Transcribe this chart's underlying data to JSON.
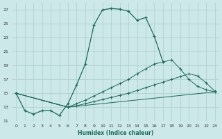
{
  "xlabel": "Humidex (Indice chaleur)",
  "background_color": "#cce8e8",
  "grid_color": "#aacece",
  "line_color": "#1a6b5a",
  "xlim": [
    -0.5,
    23.5
  ],
  "ylim": [
    11,
    28
  ],
  "yticks": [
    11,
    13,
    15,
    17,
    19,
    21,
    23,
    25,
    27
  ],
  "xticks": [
    0,
    1,
    2,
    3,
    4,
    5,
    6,
    7,
    8,
    9,
    10,
    11,
    12,
    13,
    14,
    15,
    16,
    17,
    18,
    19,
    20,
    21,
    22,
    23
  ],
  "line1_x": [
    0,
    1,
    2,
    3,
    4,
    5,
    6,
    7,
    8,
    9,
    10,
    11,
    12,
    13,
    14,
    15,
    16,
    17
  ],
  "line1_y": [
    15.0,
    12.5,
    12.0,
    12.5,
    12.5,
    11.8,
    13.5,
    16.2,
    19.2,
    24.8,
    27.0,
    27.2,
    27.1,
    26.8,
    25.5,
    25.9,
    23.2,
    19.5
  ],
  "line2_x": [
    0,
    6,
    23
  ],
  "line2_y": [
    15.0,
    13.0,
    15.2
  ],
  "line3_x": [
    0,
    6,
    7,
    8,
    9,
    10,
    11,
    12,
    13,
    14,
    15,
    16,
    17,
    18,
    19,
    20,
    21,
    22,
    23
  ],
  "line3_y": [
    15.0,
    13.0,
    13.2,
    13.5,
    13.8,
    14.1,
    14.4,
    14.7,
    15.0,
    15.4,
    15.8,
    16.2,
    16.6,
    17.0,
    17.4,
    17.8,
    17.5,
    16.5,
    15.3
  ],
  "line4_x": [
    0,
    6,
    7,
    8,
    9,
    10,
    11,
    12,
    13,
    14,
    15,
    16,
    17,
    18,
    19,
    20,
    21,
    22,
    23
  ],
  "line4_y": [
    15.0,
    13.0,
    13.5,
    14.0,
    14.6,
    15.2,
    15.8,
    16.4,
    17.0,
    17.8,
    18.5,
    19.2,
    19.5,
    19.8,
    18.5,
    17.0,
    16.0,
    15.5,
    15.2
  ]
}
